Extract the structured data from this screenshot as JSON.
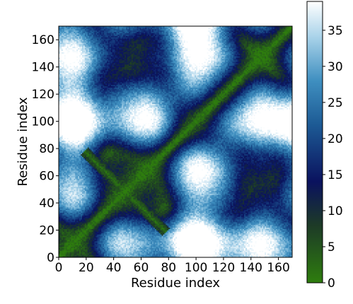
{
  "chart_data": {
    "type": "heatmap",
    "title": "",
    "xlabel": "Residue index",
    "ylabel": "Residue index",
    "n_residues": 170,
    "xlim": [
      0,
      170
    ],
    "ylim": [
      0,
      170
    ],
    "x_ticks": [
      0,
      20,
      40,
      60,
      80,
      100,
      120,
      140,
      160
    ],
    "y_ticks": [
      0,
      20,
      40,
      60,
      80,
      100,
      120,
      140,
      160
    ],
    "colorbar": {
      "range": [
        0,
        39
      ],
      "ticks": [
        0,
        5,
        10,
        15,
        20,
        25,
        30,
        35
      ],
      "colors": [
        {
          "value": 0,
          "color": "#2e7d0e"
        },
        {
          "value": 8,
          "color": "#1d3a27"
        },
        {
          "value": 14,
          "color": "#0a125e"
        },
        {
          "value": 22,
          "color": "#1d5b95"
        },
        {
          "value": 28,
          "color": "#3f8fc0"
        },
        {
          "value": 34,
          "color": "#a8d2e9"
        },
        {
          "value": 39,
          "color": "#ffffff"
        }
      ]
    },
    "description_of_values": "Symmetric residue-residue distance map; near-zero values along the main diagonal (green), with a cross pattern of low values centered near residue 48."
  }
}
